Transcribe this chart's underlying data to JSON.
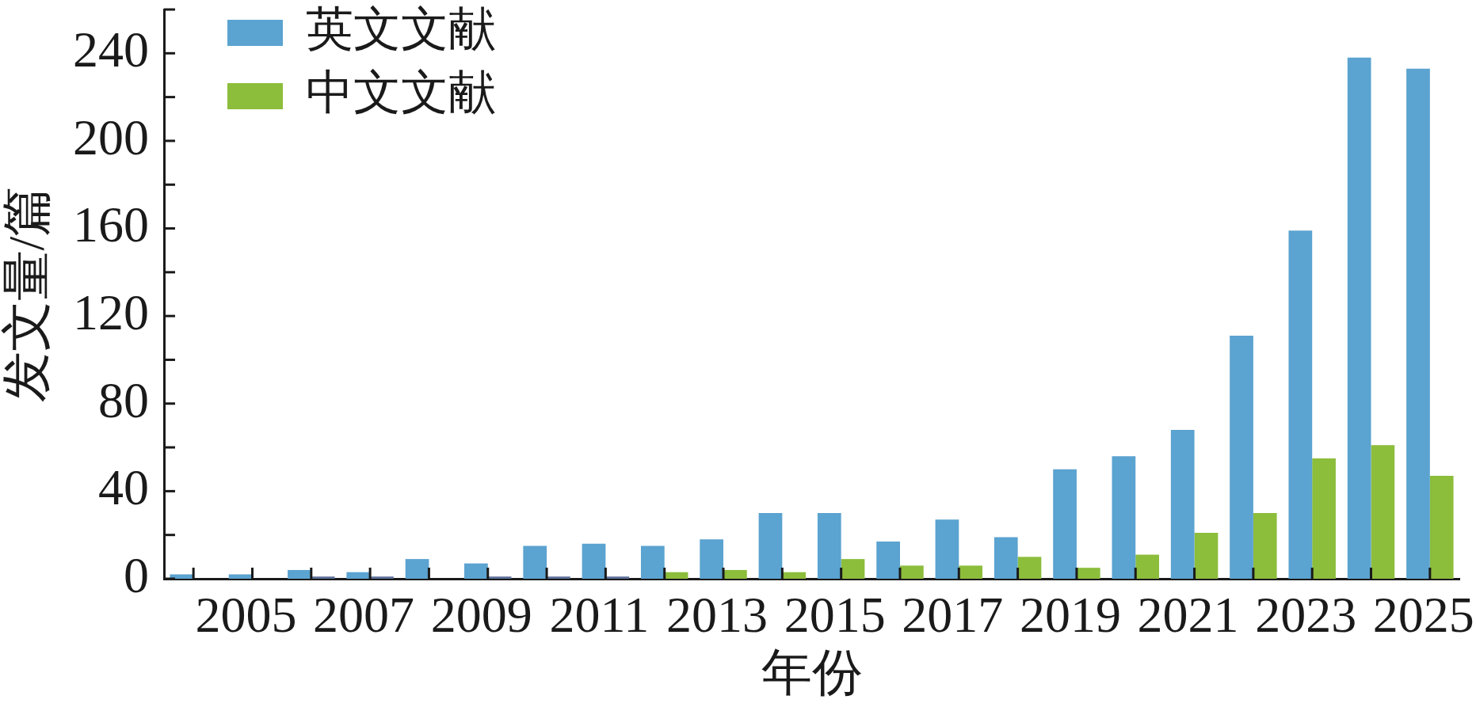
{
  "chart_data": {
    "type": "bar",
    "xlabel": "年份",
    "ylabel": "发文量/篇",
    "categories": [
      null,
      "2005",
      null,
      "2007",
      null,
      "2009",
      null,
      "2011",
      null,
      "2013",
      null,
      "2015",
      null,
      "2017",
      null,
      "2019",
      null,
      "2021",
      null,
      "2023",
      null,
      "2025"
    ],
    "series": [
      {
        "name": "英文文献",
        "color": "#5ba3d0",
        "values": [
          2,
          2,
          4,
          3,
          9,
          7,
          15,
          16,
          15,
          18,
          30,
          30,
          17,
          27,
          19,
          50,
          56,
          68,
          111,
          159,
          238,
          233
        ]
      },
      {
        "name": "中文文献",
        "color": "#8cbd3b",
        "colors": [
          "#8cbd3b",
          "#8cbd3b",
          "#5b6f97",
          "#5b6f97",
          "#8cbd3b",
          "#5b6f97",
          "#5b6f97",
          "#5b6f97",
          "#8cbd3b",
          "#8cbd3b",
          "#8cbd3b",
          "#8cbd3b",
          "#8cbd3b",
          "#8cbd3b",
          "#8cbd3b",
          "#8cbd3b",
          "#8cbd3b",
          "#8cbd3b",
          "#8cbd3b",
          "#8cbd3b",
          "#8cbd3b",
          "#8cbd3b"
        ],
        "values": [
          0,
          0,
          1,
          1,
          0,
          1,
          1,
          1,
          3,
          4,
          3,
          9,
          6,
          6,
          10,
          5,
          11,
          21,
          30,
          55,
          61,
          47
        ]
      }
    ],
    "ylim": [
      0,
      260
    ],
    "yticks": [
      0,
      {
        "value": 20,
        "label": null
      },
      40,
      {
        "value": 60,
        "label": null
      },
      80,
      {
        "value": 100,
        "label": null
      },
      120,
      {
        "value": 140,
        "label": null
      },
      160,
      {
        "value": 180,
        "label": null
      },
      200,
      {
        "value": 220,
        "label": null
      },
      240,
      {
        "value": 260,
        "label": null
      }
    ],
    "legend": "top left"
  }
}
